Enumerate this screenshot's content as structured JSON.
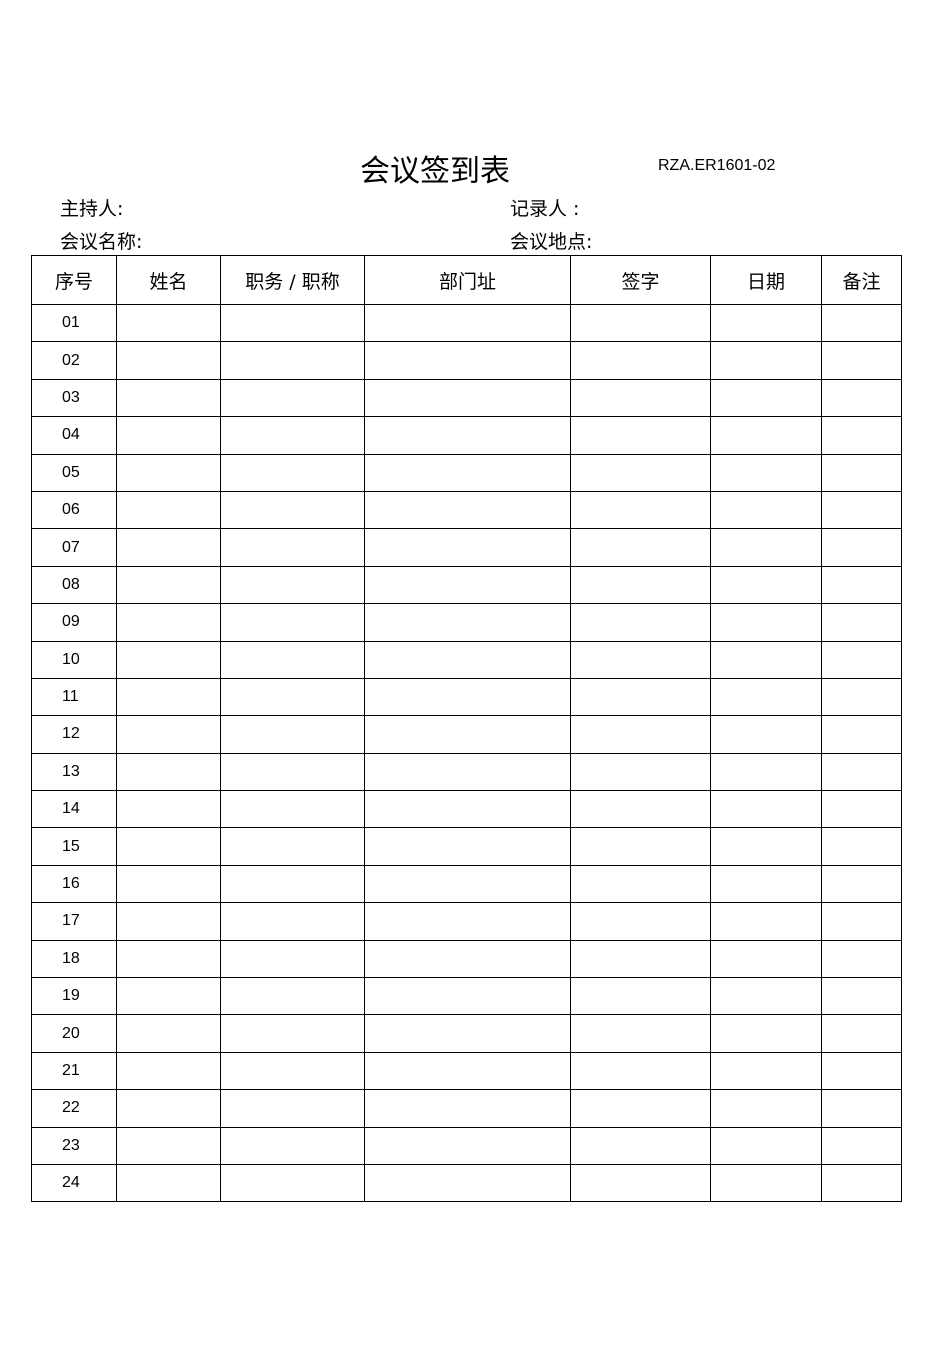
{
  "title": "会议签到表",
  "form_code": "RZA.ER1601-02",
  "fields": {
    "host": "主持人:",
    "recorder": "记录人 :",
    "meeting_name": "会议名称:",
    "meeting_location": "会议地点:"
  },
  "table": {
    "headers": [
      "序号",
      "姓名",
      "职务 / 职称",
      "部门址",
      "签字",
      "日期",
      "备注"
    ],
    "rows": [
      "01",
      "02",
      "03",
      "04",
      "05",
      "06",
      "07",
      "08",
      "09",
      "10",
      "11",
      "12",
      "13",
      "14",
      "15",
      "16",
      "17",
      "18",
      "19",
      "20",
      "21",
      "22",
      "23",
      "24"
    ]
  }
}
